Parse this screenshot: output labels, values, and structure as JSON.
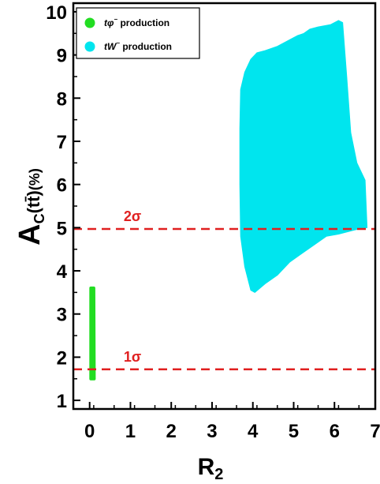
{
  "chart_data": {
    "type": "scatter",
    "title": "",
    "xlabel": "R",
    "xlabel_sub": "2",
    "ylabel": "A",
    "ylabel_sub": "C",
    "ylabel_paren": "(tt̄)",
    "ylabel_unit": "(%)",
    "xlim": [
      -0.4,
      7
    ],
    "ylim": [
      0.8,
      10.2
    ],
    "x_ticks": [
      0,
      1,
      2,
      3,
      4,
      5,
      6,
      7
    ],
    "y_ticks": [
      1,
      2,
      3,
      4,
      5,
      6,
      7,
      8,
      9,
      10
    ],
    "grid": false,
    "legend": {
      "placement": "top-left",
      "entries": [
        {
          "label_main": "tφ",
          "label_sup": "−",
          "label_rest": " production",
          "color": "#22dd22"
        },
        {
          "label_main": "tW",
          "label_sup": "−",
          "label_rest": " production",
          "color": "#00e5ee"
        }
      ]
    },
    "series": [
      {
        "color": "#22dd22",
        "region": [
          [
            0.03,
            1.5
          ],
          [
            0.03,
            3.6
          ],
          [
            0.1,
            3.6
          ],
          [
            0.11,
            1.5
          ]
        ]
      },
      {
        "color": "#00e5ee",
        "region": [
          [
            3.7,
            8.2
          ],
          [
            3.8,
            8.6
          ],
          [
            3.95,
            8.9
          ],
          [
            4.1,
            9.05
          ],
          [
            4.3,
            9.1
          ],
          [
            4.6,
            9.2
          ],
          [
            4.9,
            9.35
          ],
          [
            5.1,
            9.45
          ],
          [
            5.25,
            9.5
          ],
          [
            5.4,
            9.6
          ],
          [
            5.6,
            9.65
          ],
          [
            5.9,
            9.7
          ],
          [
            6.1,
            9.8
          ],
          [
            6.2,
            9.75
          ],
          [
            6.3,
            8.5
          ],
          [
            6.4,
            7.2
          ],
          [
            6.55,
            6.5
          ],
          [
            6.75,
            6.1
          ],
          [
            6.8,
            5.0
          ],
          [
            6.5,
            4.95
          ],
          [
            6.1,
            4.85
          ],
          [
            5.8,
            4.8
          ],
          [
            5.5,
            4.6
          ],
          [
            5.2,
            4.4
          ],
          [
            4.9,
            4.2
          ],
          [
            4.6,
            3.9
          ],
          [
            4.3,
            3.7
          ],
          [
            4.05,
            3.5
          ],
          [
            3.95,
            3.55
          ],
          [
            3.8,
            4.1
          ],
          [
            3.7,
            4.8
          ],
          [
            3.68,
            6.0
          ],
          [
            3.68,
            7.3
          ]
        ]
      }
    ],
    "annotations": [
      {
        "type": "hline",
        "y": 4.97,
        "color": "#e02020",
        "label": "2σ",
        "label_x": 1.05,
        "label_y": 5.15
      },
      {
        "type": "hline",
        "y": 1.72,
        "color": "#e02020",
        "label": "1σ",
        "label_x": 1.05,
        "label_y": 1.9
      }
    ]
  }
}
